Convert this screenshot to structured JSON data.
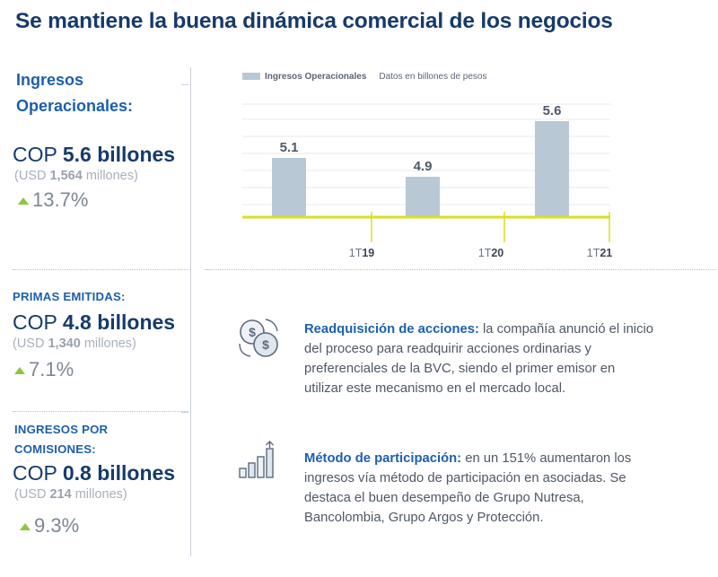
{
  "title": "Se mantiene la buena dinámica comercial de los negocios",
  "metrics": [
    {
      "label_line1": "Ingresos",
      "label_line2": "Operacionales:",
      "cop_prefix": "COP",
      "cop_value": "5.6 billones",
      "usd_open": "(USD",
      "usd_value": "1,564",
      "usd_close": "millones)",
      "change": "13.7%"
    },
    {
      "label_line1": "PRIMAS EMITIDAS:",
      "cop_prefix": "COP",
      "cop_value": "4.8 billones",
      "usd_open": "(USD",
      "usd_value": "1,340",
      "usd_close": "millones)",
      "change": "7.1%"
    },
    {
      "label_line1": "INGRESOS POR",
      "label_line2": "COMISIONES:",
      "cop_prefix": "COP",
      "cop_value": "0.8 billones",
      "usd_open": "(USD",
      "usd_value": "214",
      "usd_close": "millones)",
      "change": "9.3%"
    }
  ],
  "chart_data": {
    "type": "bar",
    "categories": [
      "1T19",
      "1T20",
      "1T21"
    ],
    "series": [
      {
        "name": "Ingresos Operacionales",
        "values": [
          5.1,
          4.9,
          5.6
        ]
      }
    ],
    "data_labels": [
      "5.1",
      "4.9",
      "5.6"
    ],
    "legend_note": "Datos en billones de pesos",
    "tick_labels": [
      {
        "prefix": "1T",
        "suffix": "19"
      },
      {
        "prefix": "1T",
        "suffix": "20"
      },
      {
        "prefix": "1T",
        "suffix": "21"
      }
    ],
    "legend_position": "top-left",
    "colors": {
      "bar": "#b9c8d5",
      "axis": "#d9e021",
      "grid": "#e6eaee"
    }
  },
  "items": [
    {
      "icon": "coins-exchange-icon",
      "heading": "Readquisición de acciones:",
      "lines": [
        " la compañía anunció el inicio",
        "del proceso para readquirir acciones ordinarias y",
        "preferenciales de la BVC, siendo el primer emisor en",
        "utilizar este mecanismo en el mercado local."
      ]
    },
    {
      "icon": "growth-bars-icon",
      "heading": "Método de participación:",
      "lines": [
        " en un 151% aumentaron los",
        "ingresos vía método de participación en asociadas. Se",
        "destaca el buen desempeño de Grupo Nutresa,",
        "Bancolombia, Grupo Argos y Protección."
      ]
    }
  ]
}
